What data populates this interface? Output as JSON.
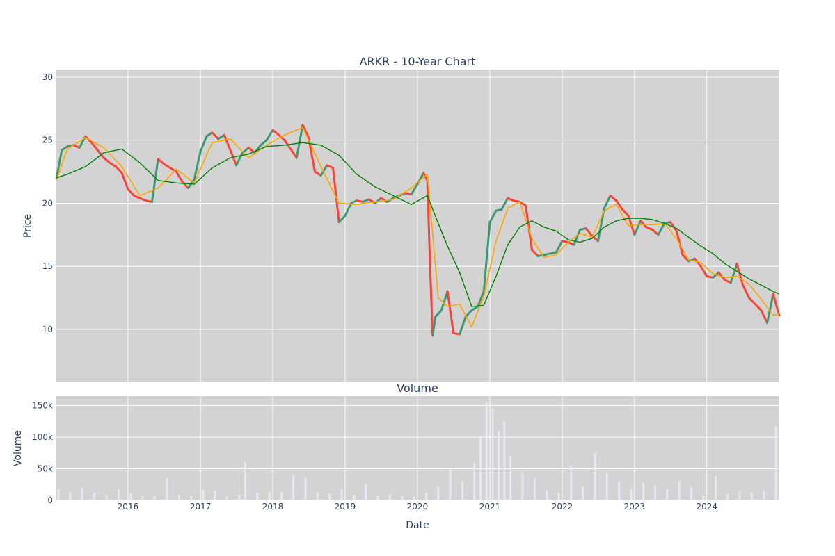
{
  "chart_data": [
    {
      "type": "candlestick",
      "title": "ARKR - 10-Year Chart",
      "ylabel": "Price",
      "ylim": [
        5.8,
        30.6
      ],
      "xlim": [
        "2015-01-01",
        "2025-01-01"
      ],
      "yticks": [
        10,
        15,
        20,
        25,
        30
      ],
      "grid": true,
      "background": "#d3d3d3",
      "colors": {
        "up": "#3d9970",
        "down": "#ff4136",
        "ma_short": "#ffa500",
        "ma_long": "#008000"
      },
      "series": [
        {
          "kind": "close",
          "x": [
            "2015-01-05",
            "2015-02-01",
            "2015-03-01",
            "2015-04-01",
            "2015-05-01",
            "2015-06-01",
            "2015-07-01",
            "2015-08-01",
            "2015-09-01",
            "2015-10-01",
            "2015-11-01",
            "2015-12-01",
            "2016-01-01",
            "2016-02-01",
            "2016-03-01",
            "2016-04-01",
            "2016-05-01",
            "2016-06-01",
            "2016-07-01",
            "2016-08-01",
            "2016-09-01",
            "2016-10-01",
            "2016-11-01",
            "2016-12-01",
            "2017-01-01",
            "2017-02-01",
            "2017-03-01",
            "2017-04-01",
            "2017-05-01",
            "2017-06-01",
            "2017-07-01",
            "2017-08-01",
            "2017-09-01",
            "2017-10-01",
            "2017-11-01",
            "2017-12-01",
            "2018-01-01",
            "2018-02-01",
            "2018-03-01",
            "2018-04-01",
            "2018-05-01",
            "2018-06-01",
            "2018-07-01",
            "2018-08-01",
            "2018-09-01",
            "2018-10-01",
            "2018-11-01",
            "2018-12-01",
            "2019-01-01",
            "2019-02-01",
            "2019-03-01",
            "2019-04-01",
            "2019-05-01",
            "2019-06-01",
            "2019-07-01",
            "2019-08-01",
            "2019-09-01",
            "2019-10-01",
            "2019-11-01",
            "2019-12-01",
            "2020-01-01",
            "2020-02-01",
            "2020-02-20",
            "2020-03-05",
            "2020-03-18",
            "2020-04-01",
            "2020-05-01",
            "2020-06-01",
            "2020-07-01",
            "2020-08-01",
            "2020-09-01",
            "2020-10-01",
            "2020-11-01",
            "2020-12-01",
            "2021-01-01",
            "2021-02-01",
            "2021-03-01",
            "2021-04-01",
            "2021-05-01",
            "2021-06-01",
            "2021-07-01",
            "2021-08-01",
            "2021-09-01",
            "2021-10-01",
            "2021-11-01",
            "2021-12-01",
            "2022-01-01",
            "2022-02-01",
            "2022-03-01",
            "2022-04-01",
            "2022-05-01",
            "2022-06-01",
            "2022-07-01",
            "2022-08-01",
            "2022-09-01",
            "2022-10-01",
            "2022-11-01",
            "2022-12-01",
            "2023-01-01",
            "2023-02-01",
            "2023-03-01",
            "2023-04-01",
            "2023-05-01",
            "2023-06-01",
            "2023-07-01",
            "2023-08-01",
            "2023-09-01",
            "2023-10-01",
            "2023-11-01",
            "2023-12-01",
            "2024-01-01",
            "2024-02-01",
            "2024-03-01",
            "2024-04-01",
            "2024-05-01",
            "2024-06-01",
            "2024-07-01",
            "2024-08-01",
            "2024-09-01",
            "2024-10-01",
            "2024-11-01",
            "2024-12-01",
            "2024-12-31"
          ],
          "y": [
            22.0,
            24.2,
            24.5,
            24.6,
            24.4,
            25.3,
            24.8,
            24.2,
            23.6,
            23.2,
            22.9,
            22.4,
            21.1,
            20.6,
            20.4,
            20.2,
            20.1,
            23.5,
            23.1,
            22.8,
            22.5,
            21.7,
            21.2,
            21.9,
            24.1,
            25.3,
            25.6,
            25.1,
            25.4,
            24.2,
            23.0,
            24.0,
            24.4,
            24.0,
            24.6,
            25.0,
            25.8,
            25.4,
            25.0,
            24.3,
            23.6,
            26.2,
            25.2,
            22.5,
            22.2,
            23.0,
            22.8,
            18.5,
            19.0,
            20.0,
            20.2,
            20.1,
            20.3,
            20.0,
            20.4,
            20.1,
            20.4,
            20.6,
            20.8,
            20.7,
            21.5,
            22.4,
            21.8,
            15.0,
            9.5,
            11.0,
            11.5,
            13.0,
            9.7,
            9.6,
            11.0,
            11.5,
            11.8,
            13.0,
            18.5,
            19.4,
            19.5,
            20.4,
            20.2,
            20.1,
            19.8,
            16.3,
            15.8,
            15.9,
            16.0,
            16.1,
            17.0,
            16.9,
            16.7,
            17.9,
            18.0,
            17.4,
            17.0,
            19.6,
            20.6,
            20.2,
            19.5,
            19.0,
            17.5,
            18.6,
            18.1,
            17.9,
            17.5,
            18.4,
            18.5,
            17.8,
            15.9,
            15.4,
            15.6,
            15.0,
            14.2,
            14.1,
            14.5,
            13.9,
            13.7,
            15.2,
            13.5,
            12.5,
            12.0,
            11.5,
            10.5,
            12.8,
            11.1
          ]
        },
        {
          "kind": "ma_short",
          "x": [
            "2015-01-05",
            "2015-03-01",
            "2015-06-01",
            "2015-09-01",
            "2015-12-01",
            "2016-03-01",
            "2016-06-01",
            "2016-09-01",
            "2016-12-01",
            "2017-03-01",
            "2017-06-01",
            "2017-09-01",
            "2017-12-01",
            "2018-03-01",
            "2018-06-01",
            "2018-09-01",
            "2018-12-01",
            "2019-03-01",
            "2019-06-01",
            "2019-09-01",
            "2019-12-01",
            "2020-02-20",
            "2020-04-15",
            "2020-06-01",
            "2020-08-01",
            "2020-10-01",
            "2020-12-01",
            "2021-02-01",
            "2021-04-01",
            "2021-06-01",
            "2021-08-01",
            "2021-10-01",
            "2021-12-01",
            "2022-02-01",
            "2022-04-01",
            "2022-06-01",
            "2022-08-01",
            "2022-10-01",
            "2022-12-01",
            "2023-02-01",
            "2023-04-01",
            "2023-06-01",
            "2023-08-01",
            "2023-10-01",
            "2023-12-01",
            "2024-02-01",
            "2024-04-01",
            "2024-06-01",
            "2024-08-01",
            "2024-10-01",
            "2024-12-01",
            "2024-12-31"
          ],
          "y": [
            21.8,
            24.3,
            25.2,
            24.4,
            22.9,
            20.6,
            21.2,
            22.7,
            21.6,
            24.8,
            25.1,
            23.6,
            24.6,
            25.4,
            26.0,
            22.9,
            20.0,
            19.9,
            20.1,
            20.3,
            21.2,
            22.3,
            12.5,
            11.8,
            12.0,
            10.2,
            12.6,
            17.0,
            19.6,
            20.1,
            17.2,
            15.7,
            15.9,
            16.9,
            17.6,
            17.3,
            19.4,
            19.9,
            18.2,
            18.3,
            18.3,
            18.4,
            17.2,
            15.5,
            15.3,
            14.4,
            14.1,
            14.2,
            13.6,
            12.4,
            11.1,
            11.2
          ]
        },
        {
          "kind": "ma_long",
          "x": [
            "2015-01-05",
            "2015-03-01",
            "2015-06-01",
            "2015-09-01",
            "2015-12-01",
            "2016-03-01",
            "2016-06-01",
            "2016-09-01",
            "2016-12-01",
            "2017-03-01",
            "2017-06-01",
            "2017-09-01",
            "2017-12-01",
            "2018-03-01",
            "2018-06-01",
            "2018-09-01",
            "2018-12-01",
            "2019-03-01",
            "2019-06-01",
            "2019-09-01",
            "2019-12-01",
            "2020-02-20",
            "2020-04-15",
            "2020-06-01",
            "2020-08-01",
            "2020-10-01",
            "2020-12-01",
            "2021-02-01",
            "2021-04-01",
            "2021-06-01",
            "2021-08-01",
            "2021-10-01",
            "2021-12-01",
            "2022-02-01",
            "2022-04-01",
            "2022-06-01",
            "2022-08-01",
            "2022-10-01",
            "2022-12-01",
            "2023-02-01",
            "2023-04-01",
            "2023-06-01",
            "2023-08-01",
            "2023-10-01",
            "2023-12-01",
            "2024-02-01",
            "2024-04-01",
            "2024-06-01",
            "2024-08-01",
            "2024-10-01",
            "2024-12-01",
            "2024-12-31"
          ],
          "y": [
            22.0,
            22.3,
            22.9,
            24.0,
            24.3,
            23.2,
            21.8,
            21.6,
            21.5,
            22.8,
            23.6,
            23.9,
            24.5,
            24.6,
            24.8,
            24.6,
            23.8,
            22.3,
            21.3,
            20.6,
            19.9,
            20.6,
            18.4,
            16.6,
            14.5,
            11.8,
            11.9,
            14.2,
            16.7,
            18.1,
            18.6,
            18.1,
            17.8,
            17.1,
            16.9,
            17.2,
            18.1,
            18.6,
            18.8,
            18.8,
            18.7,
            18.4,
            18.0,
            17.3,
            16.6,
            16.0,
            15.2,
            14.6,
            14.0,
            13.5,
            13.0,
            12.8
          ]
        }
      ]
    },
    {
      "type": "bar",
      "title": "Volume",
      "xlabel": "Date",
      "ylabel": "Volume",
      "ylim": [
        0,
        165000
      ],
      "yticks": [
        0,
        50000,
        100000,
        150000
      ],
      "ytick_labels": [
        "0",
        "50k",
        "100k",
        "150k"
      ],
      "xticks": [
        "2016",
        "2017",
        "2018",
        "2019",
        "2020",
        "2021",
        "2022",
        "2023",
        "2024"
      ],
      "grid": true,
      "background": "#d3d3d3",
      "color": "#e8e8f5",
      "x": [
        "2015-01",
        "2015-03",
        "2015-05",
        "2015-07",
        "2015-09",
        "2015-11",
        "2016-01",
        "2016-03",
        "2016-05",
        "2016-07",
        "2016-09",
        "2016-11",
        "2017-01",
        "2017-03",
        "2017-05",
        "2017-07",
        "2017-08",
        "2017-10",
        "2017-12",
        "2018-02",
        "2018-04",
        "2018-06",
        "2018-08",
        "2018-10",
        "2018-12",
        "2019-02",
        "2019-04",
        "2019-06",
        "2019-08",
        "2019-10",
        "2019-12",
        "2020-02",
        "2020-04",
        "2020-06",
        "2020-08",
        "2020-10",
        "2020-11",
        "2020-12",
        "2021-01",
        "2021-02",
        "2021-03",
        "2021-04",
        "2021-06",
        "2021-08",
        "2021-10",
        "2021-12",
        "2022-02",
        "2022-04",
        "2022-06",
        "2022-08",
        "2022-10",
        "2022-12",
        "2023-02",
        "2023-04",
        "2023-06",
        "2023-08",
        "2023-10",
        "2023-12",
        "2024-02",
        "2024-04",
        "2024-06",
        "2024-08",
        "2024-10",
        "2024-12"
      ],
      "values": [
        18000,
        14000,
        20000,
        12000,
        9000,
        17000,
        11000,
        8000,
        7000,
        35000,
        9000,
        8000,
        16000,
        15000,
        6000,
        9000,
        60000,
        12000,
        14000,
        13000,
        40000,
        36000,
        12000,
        10000,
        18000,
        9000,
        26000,
        8000,
        10000,
        7000,
        6000,
        12000,
        22000,
        50000,
        30000,
        60000,
        100000,
        155000,
        145000,
        110000,
        125000,
        70000,
        45000,
        35000,
        15000,
        12000,
        55000,
        22000,
        75000,
        45000,
        30000,
        18000,
        28000,
        25000,
        18000,
        30000,
        20000,
        8000,
        38000,
        10000,
        14000,
        12000,
        15000,
        117000
      ]
    }
  ]
}
